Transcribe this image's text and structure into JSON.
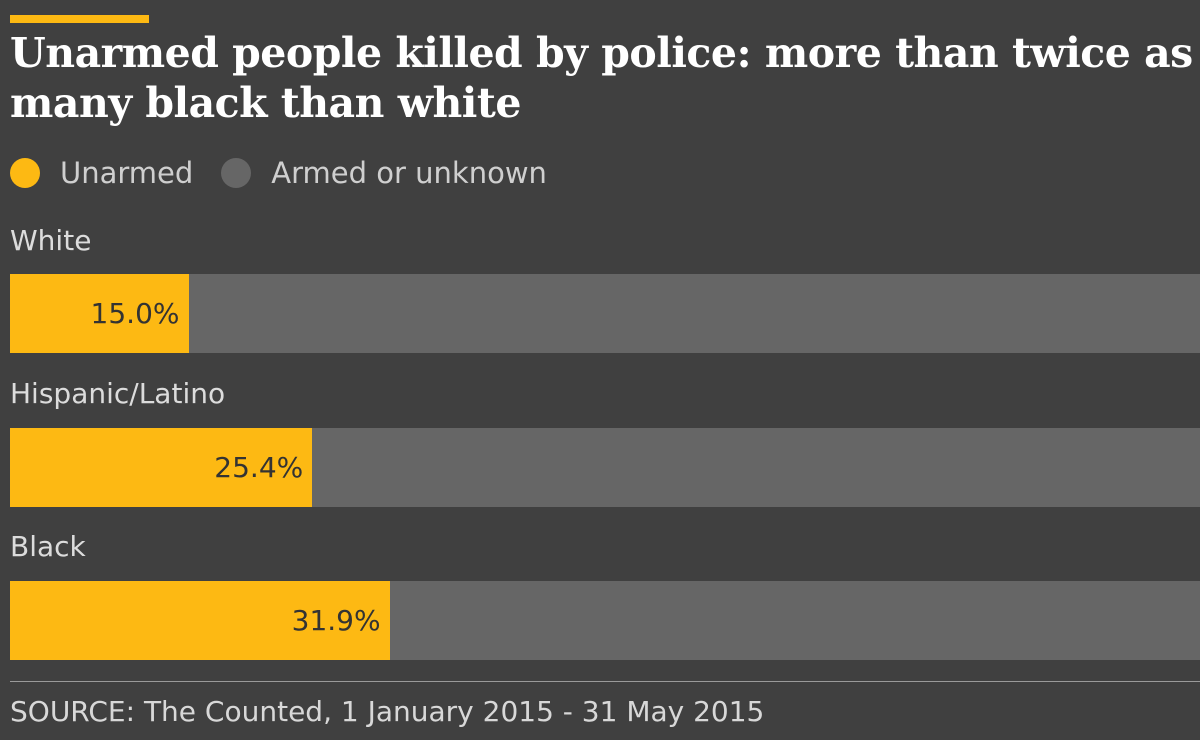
{
  "colors": {
    "background": "#404040",
    "unarmed": "#fdb913",
    "armed": "#666666"
  },
  "chart_data": {
    "type": "bar",
    "orientation": "horizontal",
    "stacked": true,
    "title": "Unarmed people killed by police: more than twice as many black than white",
    "legend": [
      {
        "label": "Unarmed",
        "color": "#fdb913"
      },
      {
        "label": "Armed or unknown",
        "color": "#666666"
      }
    ],
    "legend_position": "top-left",
    "categories": [
      "White",
      "Hispanic/Latino",
      "Black"
    ],
    "series": [
      {
        "name": "Unarmed",
        "values": [
          15.0,
          25.4,
          31.9
        ]
      },
      {
        "name": "Armed or unknown",
        "values": [
          85.0,
          74.6,
          68.1
        ]
      }
    ],
    "value_labels": [
      "15.0%",
      "25.4%",
      "31.9%"
    ],
    "xlim": [
      0,
      100
    ],
    "grid": false,
    "source": "SOURCE: The Counted, 1 January 2015 - 31 May 2015"
  }
}
